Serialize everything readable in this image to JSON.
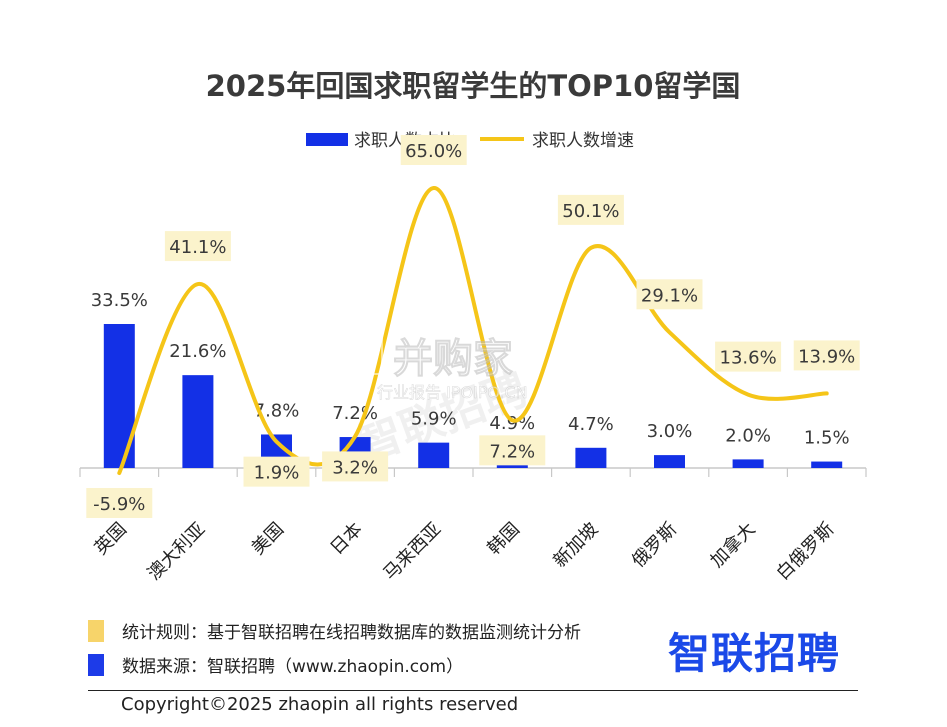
{
  "colors": {
    "bar": "#1330e6",
    "line": "#f5c518",
    "label_bg": "#fbf3cc",
    "axis": "#c8c8c8",
    "note_yellow": "#f7d46a",
    "note_blue": "#1d3be8",
    "brand": "#1b49e8"
  },
  "chart_data": {
    "type": "bar",
    "title": "2025年回国求职留学生的TOP10留学国",
    "categories": [
      "英国",
      "澳大利亚",
      "美国",
      "日本",
      "马来西亚",
      "韩国",
      "新加坡",
      "俄罗斯",
      "加拿大",
      "白俄罗斯"
    ],
    "series": [
      {
        "name": "求职人数占比",
        "type": "bar",
        "values": [
          33.5,
          21.6,
          7.8,
          7.2,
          5.9,
          4.9,
          4.7,
          3.0,
          2.0,
          1.5
        ],
        "labels": [
          "33.5%",
          "21.6%",
          "7.8%",
          "7.2%",
          "5.9%",
          "4.9%",
          "4.7%",
          "3.0%",
          "2.0%",
          "1.5%"
        ]
      },
      {
        "name": "求职人数增速",
        "type": "line",
        "smooth": true,
        "values": [
          -5.9,
          41.1,
          1.9,
          3.2,
          65.0,
          7.2,
          50.1,
          29.1,
          13.6,
          13.9
        ],
        "labels": [
          "-5.9%",
          "41.1%",
          "1.9%",
          "3.2%",
          "65.0%",
          "7.2%",
          "50.1%",
          "29.1%",
          "13.6%",
          "13.9%"
        ]
      }
    ],
    "legend": "top-center",
    "grid": false
  },
  "notes": [
    {
      "text": "统计规则：基于智联招聘在线招聘数据库的数据监测统计分析",
      "color": "#f7d46a"
    },
    {
      "text": "数据来源：智联招聘（www.zhaopin.com）",
      "color": "#1d3be8"
    }
  ],
  "brand": "智联招聘",
  "copyright": "Copyright©2025 zhaopin all rights reserved",
  "watermark": {
    "main": "并购家",
    "sub": "行业报告 IPOIPO.CN",
    "diagonal": "智联招聘"
  }
}
